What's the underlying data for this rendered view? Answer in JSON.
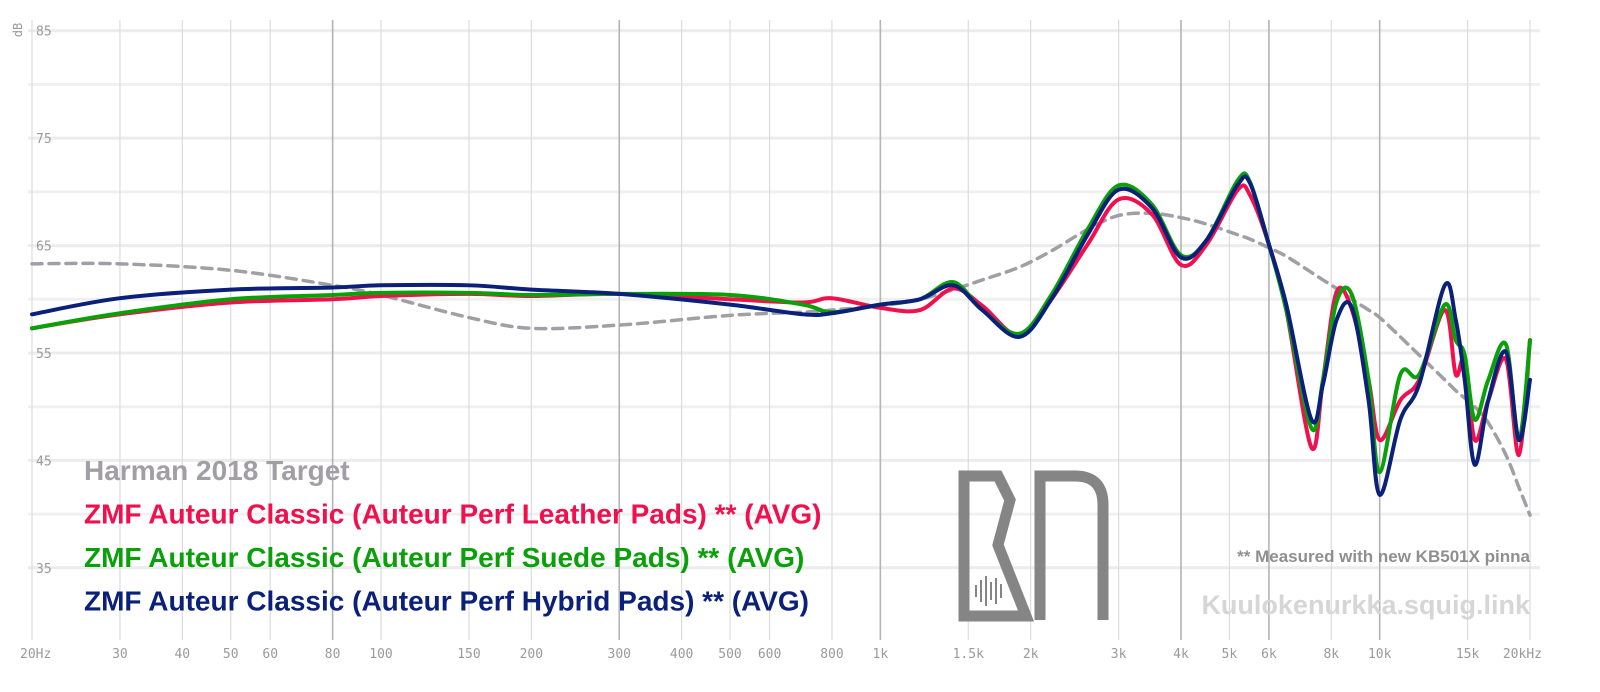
{
  "chart_data": {
    "type": "line",
    "y_axis_label": "dB",
    "xscale": "log",
    "x": [
      20,
      30,
      50,
      80,
      100,
      150,
      200,
      300,
      500,
      700,
      800,
      1000,
      1200,
      1400,
      1600,
      1900,
      2200,
      2600,
      3000,
      3500,
      4000,
      4500,
      5200,
      5500,
      6000,
      6500,
      7300,
      7700,
      8200,
      8800,
      9500,
      10000,
      11000,
      12000,
      13500,
      14200,
      14800,
      15500,
      16500,
      17900,
      19000,
      20000
    ],
    "series": [
      {
        "name": "Harman 2018 Target",
        "color": "#a29ea6",
        "dashed": true,
        "values": [
          63.3,
          63.3,
          62.7,
          61.3,
          60.4,
          58.3,
          57.3,
          57.6,
          58.5,
          58.8,
          59.0,
          59.4,
          60.0,
          60.9,
          61.8,
          63.0,
          64.5,
          66.5,
          67.8,
          68.0,
          67.6,
          67.0,
          66.0,
          65.6,
          64.8,
          64.0,
          62.5,
          61.8,
          61.0,
          60.0,
          59.0,
          58.3,
          56.5,
          54.8,
          52.5,
          51.5,
          50.8,
          50.0,
          48.5,
          45.5,
          42.5,
          39.9
        ]
      },
      {
        "name": "ZMF Auteur Classic (Auteur Perf Leather Pads) ** (AVG)",
        "color": "#f0104e",
        "values": [
          57.3,
          58.6,
          59.7,
          60.0,
          60.3,
          60.5,
          60.3,
          60.5,
          60.0,
          59.7,
          60.1,
          59.2,
          59.0,
          61.0,
          59.4,
          56.6,
          60.0,
          65.1,
          69.3,
          67.9,
          63.2,
          65.1,
          70.2,
          69.7,
          65.1,
          59.0,
          46.2,
          52.5,
          60.7,
          59.0,
          52.5,
          46.9,
          50.6,
          52.5,
          59.0,
          53.0,
          54.4,
          46.9,
          50.6,
          54.4,
          45.5,
          56.2
        ]
      },
      {
        "name": "ZMF Auteur Classic (Auteur Perf Suede Pads) ** (AVG)",
        "color": "#0aa00a",
        "values": [
          57.3,
          58.7,
          60.0,
          60.4,
          60.6,
          60.6,
          60.4,
          60.5,
          60.4,
          59.5,
          58.8,
          59.5,
          60.0,
          61.6,
          59.0,
          56.8,
          60.4,
          66.5,
          70.6,
          68.8,
          64.1,
          65.5,
          71.1,
          70.9,
          65.1,
          59.0,
          48.0,
          52.5,
          59.8,
          60.4,
          52.5,
          43.9,
          53.0,
          53.0,
          59.5,
          56.2,
          54.8,
          48.8,
          52.5,
          55.8,
          46.9,
          56.2
        ]
      },
      {
        "name": "ZMF Auteur Classic (Auteur Perf Hybrid Pads) ** (AVG)",
        "color": "#0a2079",
        "values": [
          58.6,
          60.1,
          60.9,
          61.1,
          61.3,
          61.3,
          60.9,
          60.5,
          59.5,
          58.6,
          58.7,
          59.5,
          60.0,
          61.3,
          59.0,
          56.5,
          60.0,
          66.0,
          70.2,
          68.5,
          63.9,
          65.5,
          70.7,
          70.8,
          65.1,
          59.5,
          48.8,
          52.1,
          58.1,
          59.2,
          50.6,
          41.8,
          48.8,
          52.1,
          61.3,
          58.1,
          52.5,
          44.6,
          50.6,
          55.1,
          46.9,
          52.5
        ]
      }
    ],
    "xlim": [
      20,
      20000
    ],
    "xticks": [
      {
        "value": 20,
        "label": "20Hz"
      },
      30,
      40,
      50,
      60,
      80,
      100,
      150,
      200,
      300,
      400,
      500,
      600,
      800,
      {
        "value": 1000,
        "label": "1k"
      },
      {
        "value": 1500,
        "label": "1.5k"
      },
      {
        "value": 2000,
        "label": "2k"
      },
      {
        "value": 3000,
        "label": "3k"
      },
      {
        "value": 4000,
        "label": "4k"
      },
      {
        "value": 5000,
        "label": "5k"
      },
      {
        "value": 6000,
        "label": "6k"
      },
      {
        "value": 8000,
        "label": "8k"
      },
      {
        "value": 10000,
        "label": "10k"
      },
      {
        "value": 15000,
        "label": "15k"
      },
      {
        "value": 20000,
        "label": "20kHz"
      }
    ],
    "xticks_major": [
      80,
      300,
      1000,
      4000,
      6000,
      10000
    ],
    "ylim": [
      28,
      86
    ],
    "yticks": [
      35,
      45,
      55,
      65,
      75,
      85
    ],
    "minor_yticks": [
      40,
      50,
      60,
      70,
      80
    ],
    "grid": true,
    "annotations": [
      "** Measured with new KB501X pinna",
      "Kuulokenurkka.squig.link"
    ]
  }
}
